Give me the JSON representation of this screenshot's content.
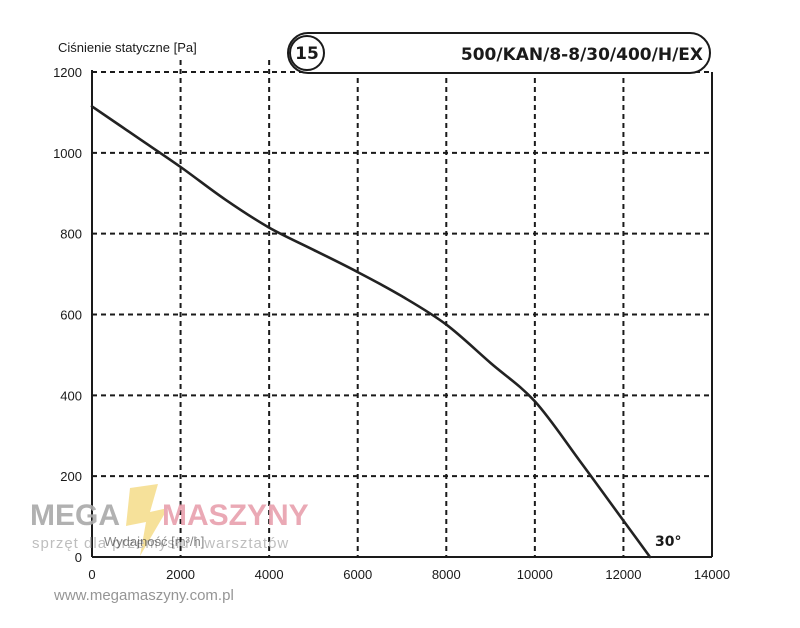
{
  "chart_data": {
    "type": "line",
    "title": "500/KAN/8-8/30/400/H/EX",
    "badge": "15",
    "ylabel": "Ciśnienie statyczne [Pa]",
    "xlabel": "Wydajność [m³/h]",
    "xlim": [
      0,
      14000
    ],
    "ylim": [
      0,
      1200
    ],
    "x_ticks": [
      "0",
      "2000",
      "4000",
      "6000",
      "8000",
      "10000",
      "12000",
      "14000"
    ],
    "y_ticks": [
      "0",
      "200",
      "400",
      "600",
      "800",
      "1000",
      "1200"
    ],
    "grid": true,
    "series": [
      {
        "name": "30°",
        "x": [
          0,
          1000,
          2000,
          3000,
          4000,
          5000,
          6000,
          7000,
          8000,
          9000,
          10000,
          11000,
          12000,
          12600
        ],
        "y": [
          1115,
          1040,
          965,
          885,
          815,
          760,
          705,
          645,
          575,
          480,
          385,
          240,
          90,
          0
        ]
      }
    ]
  },
  "watermark": {
    "brand_left": "MEGA",
    "brand_right": "MASZYNY",
    "tagline": "sprzęt dla przemysłu i warsztatów",
    "url": "www.megamaszyny.com.pl"
  },
  "colors": {
    "curve": "#222222",
    "grid": "#1a1a1a",
    "logo_yellow": "#f3d36b"
  }
}
